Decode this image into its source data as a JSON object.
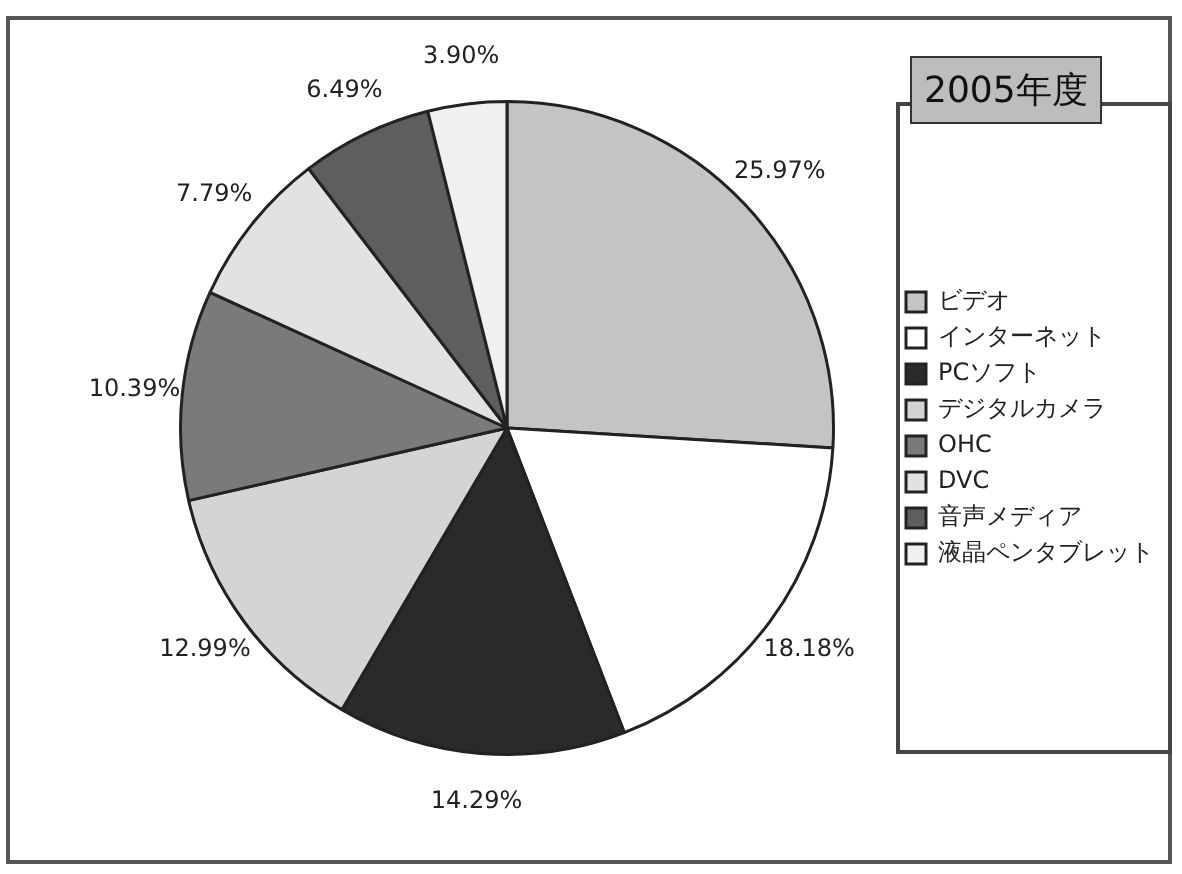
{
  "chart_data": {
    "type": "pie",
    "title": "2005年度",
    "categories": [
      "ビデオ",
      "インターネット",
      "PCソフト",
      "デジタルカメラ",
      "OHC",
      "DVC",
      "音声メディア",
      "液晶ペンタブレット"
    ],
    "values": [
      25.97,
      18.18,
      14.29,
      12.99,
      10.39,
      7.79,
      6.49,
      3.9
    ],
    "value_labels": [
      "25.97%",
      "18.18%",
      "14.29%",
      "12.99%",
      "10.39%",
      "7.79%",
      "6.49%",
      "3.90%"
    ],
    "colors": [
      "#c4c4c4",
      "#ffffff",
      "#2a2a2a",
      "#d4d4d4",
      "#7a7a7a",
      "#e2e2e2",
      "#5e5e5e",
      "#f0f0f0"
    ],
    "legend": "right"
  }
}
